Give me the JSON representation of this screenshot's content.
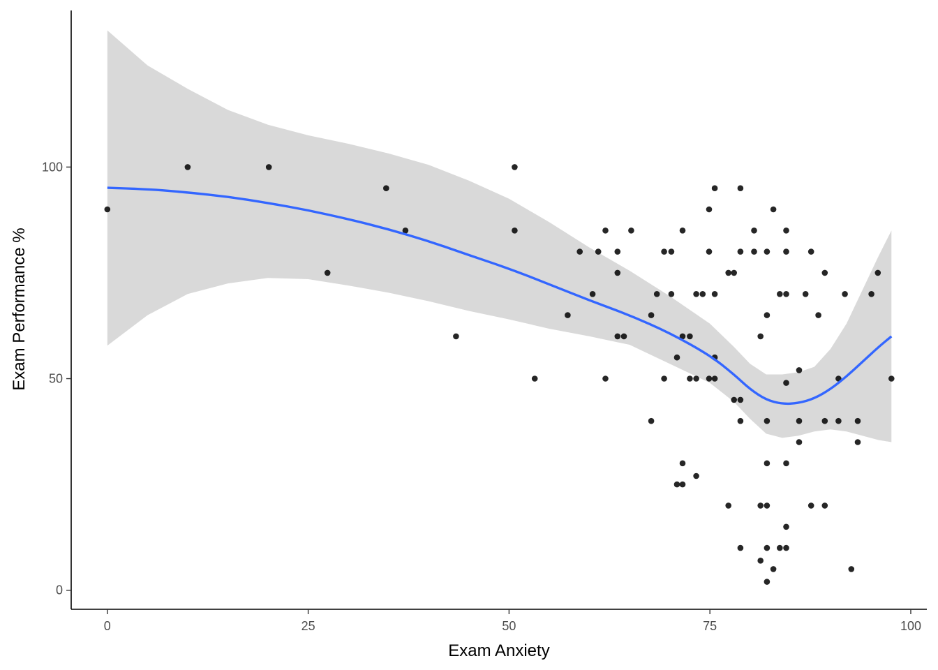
{
  "chart_data": {
    "type": "scatter",
    "title": "",
    "xlabel": "Exam Anxiety",
    "ylabel": "Exam Performance %",
    "xlim": [
      -4.5,
      102
    ],
    "ylim": [
      -4.5,
      137
    ],
    "x_ticks": [
      0,
      25,
      50,
      75,
      100
    ],
    "y_ticks": [
      0,
      50,
      100
    ],
    "grid": false,
    "legend": "none",
    "colors": {
      "points": "#000000",
      "smooth_line": "#3366FF",
      "confidence_band": "#d9d9d9",
      "axis": "#000000",
      "tick_label": "#4d4d4d"
    },
    "points": [
      [
        0,
        90
      ],
      [
        10,
        100
      ],
      [
        20.1,
        100
      ],
      [
        27.4,
        75
      ],
      [
        34.7,
        95
      ],
      [
        37.1,
        85
      ],
      [
        43.4,
        60
      ],
      [
        50.7,
        100
      ],
      [
        50.7,
        85
      ],
      [
        53.2,
        50
      ],
      [
        57.3,
        65
      ],
      [
        58.8,
        80
      ],
      [
        60.4,
        70
      ],
      [
        61.1,
        80
      ],
      [
        62,
        85
      ],
      [
        62,
        50
      ],
      [
        63.5,
        80
      ],
      [
        63.5,
        75
      ],
      [
        63.5,
        60
      ],
      [
        64.3,
        60
      ],
      [
        65.2,
        85
      ],
      [
        67.7,
        65
      ],
      [
        67.7,
        40
      ],
      [
        68.4,
        70
      ],
      [
        69.3,
        80
      ],
      [
        69.3,
        50
      ],
      [
        70.2,
        80
      ],
      [
        70.2,
        70
      ],
      [
        70.9,
        55
      ],
      [
        70.9,
        25
      ],
      [
        71.6,
        85
      ],
      [
        71.6,
        60
      ],
      [
        71.6,
        30
      ],
      [
        71.6,
        25
      ],
      [
        72.5,
        60
      ],
      [
        72.5,
        50
      ],
      [
        73.3,
        70
      ],
      [
        73.3,
        50
      ],
      [
        73.3,
        27
      ],
      [
        74.1,
        70
      ],
      [
        74.9,
        90
      ],
      [
        74.9,
        80
      ],
      [
        74.9,
        50
      ],
      [
        75.6,
        95
      ],
      [
        75.6,
        70
      ],
      [
        75.6,
        55
      ],
      [
        75.6,
        50
      ],
      [
        77.3,
        75
      ],
      [
        77.3,
        20
      ],
      [
        78,
        75
      ],
      [
        78,
        45
      ],
      [
        78.8,
        95
      ],
      [
        78.8,
        80
      ],
      [
        78.8,
        45
      ],
      [
        78.8,
        40
      ],
      [
        78.8,
        10
      ],
      [
        80.5,
        85
      ],
      [
        80.5,
        80
      ],
      [
        81.3,
        60
      ],
      [
        81.3,
        20
      ],
      [
        81.3,
        7
      ],
      [
        82.1,
        80
      ],
      [
        82.1,
        65
      ],
      [
        82.1,
        40
      ],
      [
        82.1,
        30
      ],
      [
        82.1,
        20
      ],
      [
        82.1,
        10
      ],
      [
        82.1,
        2
      ],
      [
        82.9,
        90
      ],
      [
        82.9,
        5
      ],
      [
        83.7,
        70
      ],
      [
        83.7,
        10
      ],
      [
        84.5,
        85
      ],
      [
        84.5,
        80
      ],
      [
        84.5,
        70
      ],
      [
        84.5,
        49
      ],
      [
        84.5,
        30
      ],
      [
        84.5,
        15
      ],
      [
        84.5,
        10
      ],
      [
        86.1,
        52
      ],
      [
        86.1,
        40
      ],
      [
        86.1,
        35
      ],
      [
        86.9,
        70
      ],
      [
        87.6,
        80
      ],
      [
        87.6,
        20
      ],
      [
        88.5,
        65
      ],
      [
        89.3,
        75
      ],
      [
        89.3,
        40
      ],
      [
        89.3,
        20
      ],
      [
        91,
        50
      ],
      [
        91,
        40
      ],
      [
        91.8,
        70
      ],
      [
        92.6,
        5
      ],
      [
        93.4,
        40
      ],
      [
        93.4,
        35
      ],
      [
        95.1,
        70
      ],
      [
        95.9,
        75
      ],
      [
        97.6,
        50
      ]
    ],
    "smooth_fit": [
      {
        "x": 0,
        "y": 95.1,
        "lower": 57.8,
        "upper": 132.3
      },
      {
        "x": 5,
        "y": 94.8,
        "lower": 65,
        "upper": 124
      },
      {
        "x": 10,
        "y": 94,
        "lower": 70,
        "upper": 118.5
      },
      {
        "x": 15,
        "y": 93,
        "lower": 72.5,
        "upper": 113.5
      },
      {
        "x": 20,
        "y": 91.5,
        "lower": 73.8,
        "upper": 110
      },
      {
        "x": 25,
        "y": 89.8,
        "lower": 73.5,
        "upper": 107.5
      },
      {
        "x": 30,
        "y": 87.7,
        "lower": 72,
        "upper": 105.5
      },
      {
        "x": 35,
        "y": 85.3,
        "lower": 70.3,
        "upper": 103.2
      },
      {
        "x": 40,
        "y": 82.5,
        "lower": 68.3,
        "upper": 100.5
      },
      {
        "x": 45,
        "y": 79.2,
        "lower": 66,
        "upper": 96.8
      },
      {
        "x": 50,
        "y": 76,
        "lower": 64,
        "upper": 92.5
      },
      {
        "x": 55,
        "y": 72.3,
        "lower": 61.8,
        "upper": 87
      },
      {
        "x": 60,
        "y": 68.5,
        "lower": 60,
        "upper": 81
      },
      {
        "x": 65,
        "y": 65,
        "lower": 58,
        "upper": 75.5
      },
      {
        "x": 70,
        "y": 60.8,
        "lower": 53.5,
        "upper": 69.5
      },
      {
        "x": 75,
        "y": 55.5,
        "lower": 49,
        "upper": 63
      },
      {
        "x": 78,
        "y": 51,
        "lower": 44.5,
        "upper": 57.5
      },
      {
        "x": 80,
        "y": 47.5,
        "lower": 40.5,
        "upper": 53.5
      },
      {
        "x": 82,
        "y": 45,
        "lower": 37,
        "upper": 51
      },
      {
        "x": 84,
        "y": 44,
        "lower": 36,
        "upper": 51
      },
      {
        "x": 86,
        "y": 44.2,
        "lower": 36.5,
        "upper": 51.5
      },
      {
        "x": 88,
        "y": 45.3,
        "lower": 37.5,
        "upper": 52.8
      },
      {
        "x": 90,
        "y": 47.5,
        "lower": 38,
        "upper": 57
      },
      {
        "x": 92,
        "y": 50.5,
        "lower": 37.5,
        "upper": 63
      },
      {
        "x": 94,
        "y": 54,
        "lower": 36.5,
        "upper": 71
      },
      {
        "x": 96,
        "y": 57.5,
        "lower": 35.5,
        "upper": 79
      },
      {
        "x": 97.6,
        "y": 60,
        "lower": 35,
        "upper": 85
      }
    ]
  }
}
